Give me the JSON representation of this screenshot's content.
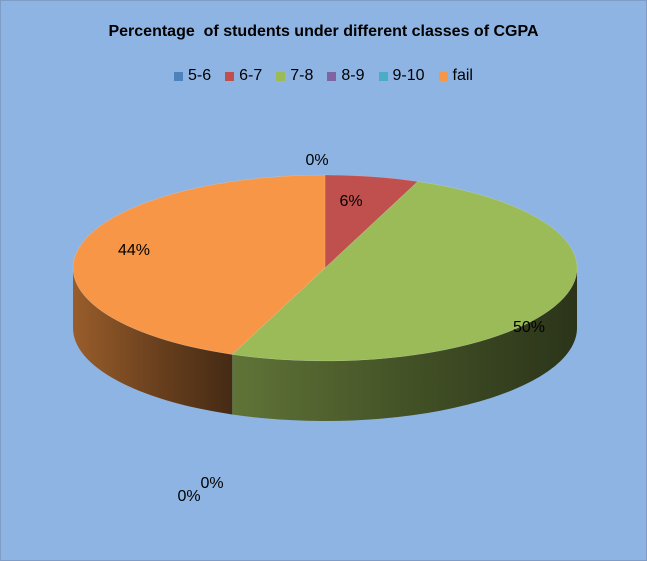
{
  "chart_data": {
    "type": "pie",
    "title": "Percentage  of students under different classes of CGPA",
    "legend_position": "top",
    "categories": [
      "5-6",
      "6-7",
      "7-8",
      "8-9",
      "9-10",
      "fail"
    ],
    "values": [
      0,
      6,
      50,
      0,
      0,
      44
    ],
    "data_labels": [
      "0%",
      "6%",
      "50%",
      "0%",
      "0%",
      "44%"
    ],
    "colors": [
      "#4f81bd",
      "#c0504d",
      "#9bbb59",
      "#8064a2",
      "#4bacc6",
      "#f79646"
    ],
    "style": "3d"
  }
}
